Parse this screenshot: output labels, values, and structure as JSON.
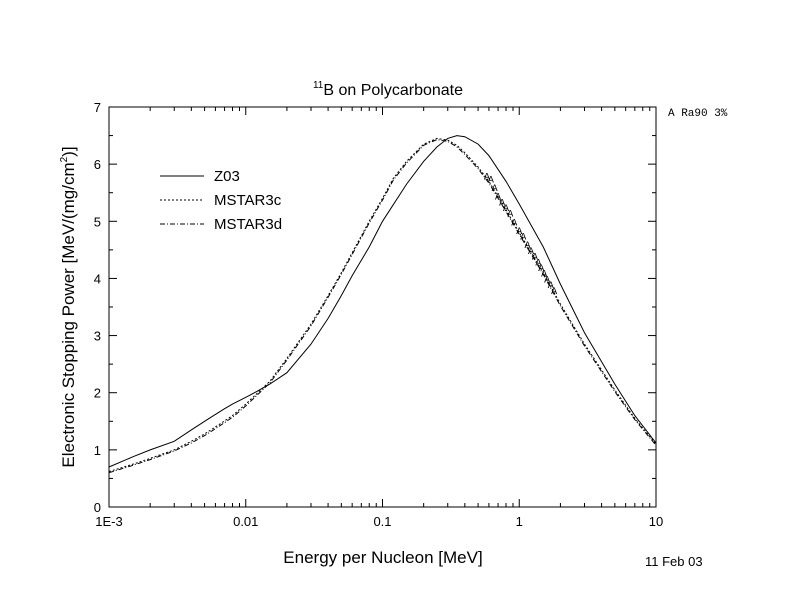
{
  "chart_data": {
    "type": "line",
    "title_isotope": "11",
    "title_rest": "B on Polycarbonate",
    "xlabel": "Energy per Nucleon [MeV]",
    "ylabel_main": "Electronic Stopping Power [MeV/(mg/cm",
    "ylabel_sup": "2",
    "ylabel_close": ")]",
    "x_scale": "log",
    "xlim": [
      0.001,
      10
    ],
    "ylim": [
      0,
      7
    ],
    "x_ticks": [
      0.001,
      0.01,
      0.1,
      1,
      10
    ],
    "x_tick_labels": [
      "1E-3",
      "0.01",
      "0.1",
      "1",
      "10"
    ],
    "y_ticks": [
      0,
      1,
      2,
      3,
      4,
      5,
      6,
      7
    ],
    "y_tick_labels": [
      "0",
      "1",
      "2",
      "3",
      "4",
      "5",
      "6",
      "7"
    ],
    "legend_position": "top-left",
    "grid": false,
    "series": [
      {
        "name": "Z03",
        "style": "solid",
        "x": [
          0.001,
          0.0015,
          0.002,
          0.003,
          0.004,
          0.005,
          0.006,
          0.007,
          0.008,
          0.01,
          0.012,
          0.015,
          0.02,
          0.03,
          0.04,
          0.05,
          0.06,
          0.08,
          0.1,
          0.15,
          0.2,
          0.25,
          0.3,
          0.35,
          0.4,
          0.5,
          0.6,
          0.8,
          1,
          1.5,
          2,
          3,
          5,
          7,
          10
        ],
        "y": [
          0.7,
          0.88,
          1.0,
          1.15,
          1.35,
          1.5,
          1.62,
          1.72,
          1.8,
          1.92,
          2.02,
          2.15,
          2.35,
          2.85,
          3.3,
          3.7,
          4.05,
          4.55,
          5.0,
          5.65,
          6.05,
          6.3,
          6.45,
          6.5,
          6.48,
          6.35,
          6.15,
          5.7,
          5.3,
          4.55,
          3.9,
          3.05,
          2.15,
          1.6,
          1.12
        ]
      },
      {
        "name": "MSTAR3c",
        "style": "dashed",
        "x": [
          0.001,
          0.0015,
          0.002,
          0.003,
          0.004,
          0.005,
          0.006,
          0.008,
          0.01,
          0.012,
          0.015,
          0.02,
          0.03,
          0.04,
          0.05,
          0.06,
          0.08,
          0.1,
          0.12,
          0.15,
          0.2,
          0.25,
          0.3,
          0.35,
          0.4,
          0.5,
          0.6,
          0.8,
          1,
          1.5,
          2,
          3,
          5,
          7,
          10
        ],
        "y": [
          0.62,
          0.75,
          0.85,
          1.0,
          1.15,
          1.28,
          1.4,
          1.6,
          1.8,
          1.98,
          2.2,
          2.6,
          3.2,
          3.7,
          4.1,
          4.45,
          5.0,
          5.4,
          5.75,
          6.05,
          6.35,
          6.45,
          6.42,
          6.33,
          6.2,
          5.95,
          5.7,
          5.2,
          4.8,
          4.1,
          3.55,
          2.85,
          2.05,
          1.55,
          1.1
        ]
      },
      {
        "name": "MSTAR3d",
        "style": "dash-dot",
        "x": [
          0.001,
          0.0015,
          0.002,
          0.003,
          0.004,
          0.005,
          0.006,
          0.008,
          0.01,
          0.012,
          0.015,
          0.02,
          0.03,
          0.04,
          0.05,
          0.06,
          0.08,
          0.1,
          0.12,
          0.15,
          0.2,
          0.25,
          0.3,
          0.35,
          0.4,
          0.5,
          0.6,
          0.8,
          1,
          1.5,
          2,
          3,
          5,
          7,
          10
        ],
        "y": [
          0.6,
          0.73,
          0.83,
          0.98,
          1.12,
          1.25,
          1.37,
          1.57,
          1.77,
          1.95,
          2.17,
          2.57,
          3.17,
          3.67,
          4.07,
          4.42,
          4.97,
          5.37,
          5.72,
          6.02,
          6.33,
          6.43,
          6.4,
          6.3,
          6.17,
          5.92,
          5.67,
          5.17,
          4.77,
          4.07,
          3.52,
          2.82,
          2.02,
          1.53,
          1.08
        ]
      }
    ],
    "markers": {
      "symbol": "A",
      "x": [
        0.58,
        0.62,
        0.66,
        0.7,
        0.75,
        0.8,
        0.86,
        0.92,
        1.0,
        1.07,
        1.15,
        1.22,
        1.3,
        1.38,
        1.45,
        1.52,
        1.6,
        1.7,
        1.8
      ],
      "y": [
        5.8,
        5.75,
        5.6,
        5.45,
        5.35,
        5.25,
        5.15,
        5.0,
        4.85,
        4.75,
        4.6,
        4.5,
        4.4,
        4.3,
        4.2,
        4.1,
        4.0,
        3.9,
        3.8
      ]
    },
    "annotation_top_right": "A Ra90 3%",
    "annotation_date": "11 Feb 03"
  }
}
